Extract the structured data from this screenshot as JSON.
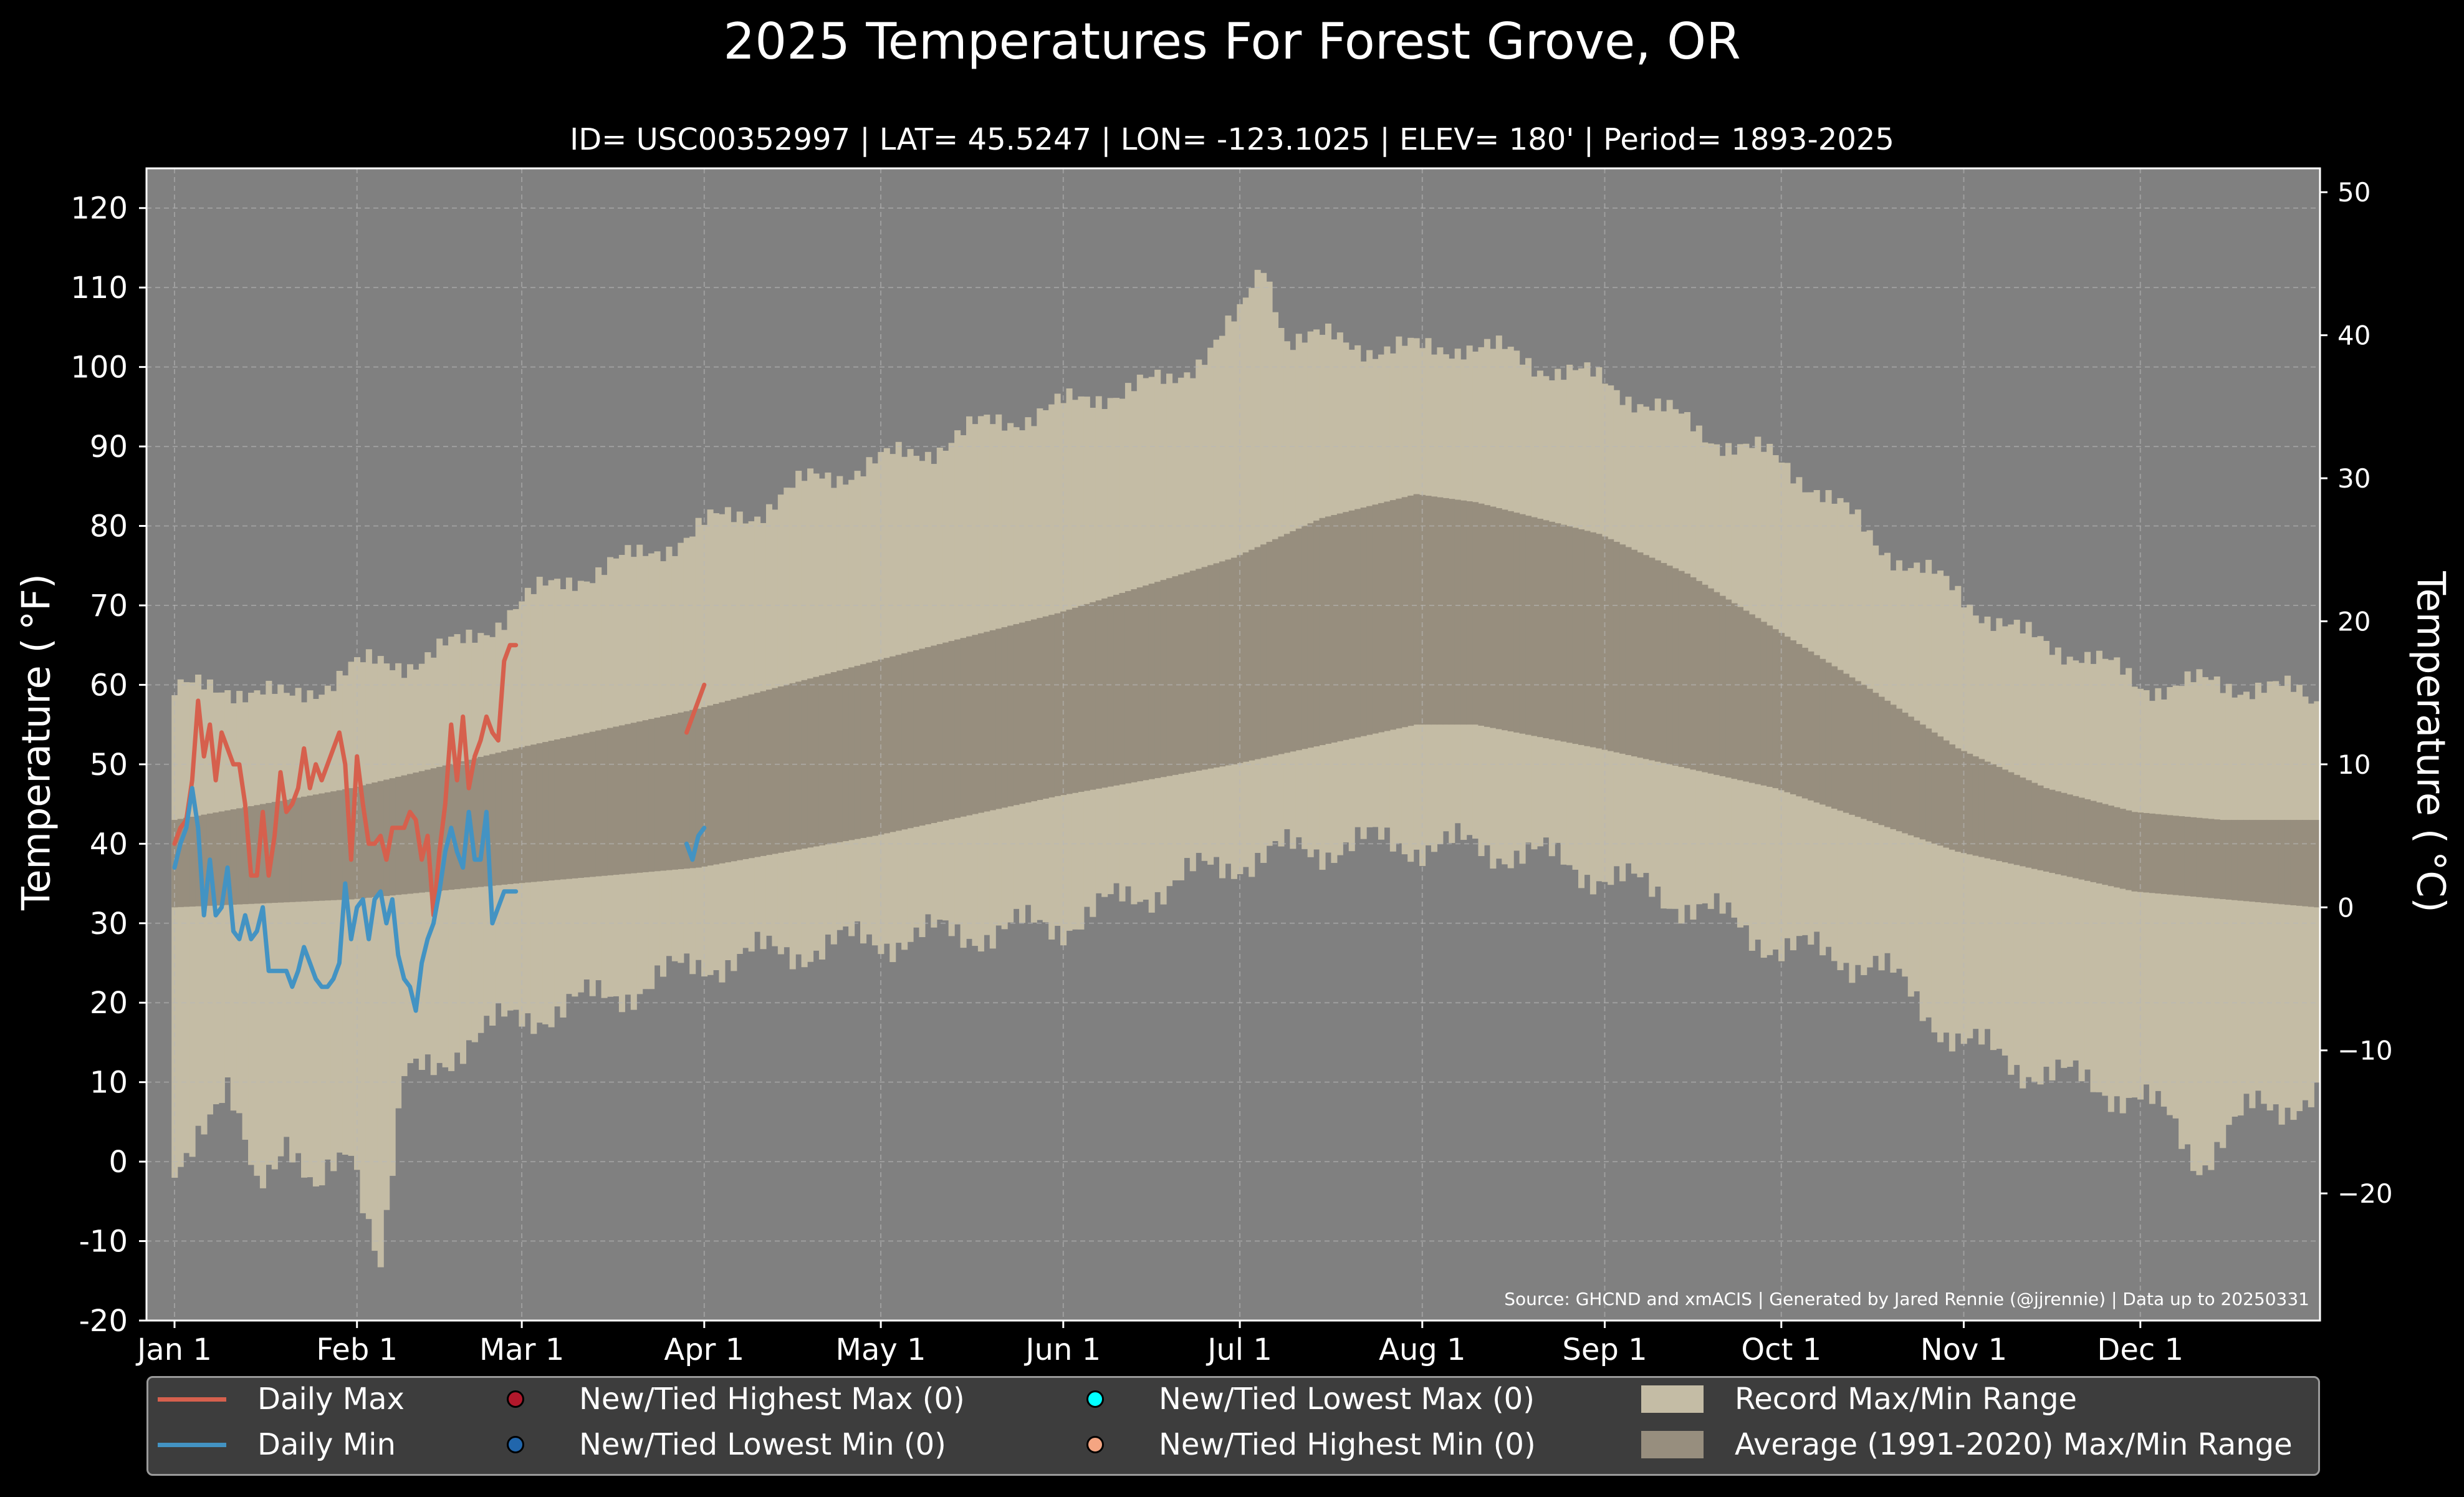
{
  "title": "2025 Temperatures For Forest Grove, OR",
  "subtitle": "ID= USC00352997 | LAT= 45.5247 | LON= -123.1025 | ELEV= 180' | Period= 1893-2025",
  "source": "Source: GHCND and xmACIS | Generated by Jared Rennie (@jjrennie) | Data up to 20250331",
  "colors": {
    "background": "#000000",
    "plot_bg": "#808080",
    "record": "#c4bca5",
    "normal": "#978e7e",
    "daily_max": "#d6604d",
    "daily_min": "#4393c3",
    "grid": "#b8b8b8"
  },
  "legend": {
    "daily_max": "Daily Max",
    "daily_min": "Daily Min",
    "new_high_max": "New/Tied Highest Max (0)",
    "new_low_min": "New/Tied Lowest Min (0)",
    "new_low_max": "New/Tied Lowest Max (0)",
    "new_high_min": "New/Tied Highest Min (0)",
    "record_range": "Record Max/Min Range",
    "normal_range": "Average (1991-2020) Max/Min Range"
  },
  "chart_data": {
    "type": "area",
    "title": "2025 Temperatures For Forest Grove, OR",
    "subtitle": "ID= USC00352997 | LAT= 45.5247 | LON= -123.1025 | ELEV= 180' | Period= 1893-2025",
    "ylabel": "Temperature ($^\\circ$F)",
    "ylabel_right": "Temperature ($^\\circ$C)",
    "ylim": [
      -20,
      125
    ],
    "yticks": [
      "120",
      "110",
      "100",
      "90",
      "80",
      "70",
      "60",
      "50",
      "40",
      "30",
      "20",
      "10",
      "0",
      "-10",
      "-20"
    ],
    "yticks_right": [
      "50",
      "40",
      "30",
      "20",
      "10",
      "0",
      "−10",
      "−20"
    ],
    "xticks": [
      "Jan 1",
      "Feb 1",
      "Mar 1",
      "Apr 1",
      "May 1",
      "Jun 1",
      "Jul 1",
      "Aug 1",
      "Sep 1",
      "Oct 1",
      "Nov 1",
      "Dec 1"
    ],
    "grid": true,
    "legend_position": "below",
    "record_max_anchors": {
      "day_of_year": [
        1,
        10,
        20,
        31,
        40,
        50,
        59,
        70,
        80,
        91,
        100,
        110,
        121,
        130,
        140,
        152,
        160,
        170,
        182,
        186,
        190,
        200,
        213,
        220,
        230,
        244,
        250,
        260,
        274,
        280,
        290,
        305,
        315,
        325,
        335,
        345,
        355,
        365
      ],
      "temp_f": [
        59,
        60,
        58,
        62,
        63,
        65,
        70,
        74,
        76,
        80,
        82,
        86,
        88,
        90,
        93,
        95,
        97,
        98,
        106,
        113,
        104,
        103,
        102,
        103,
        101,
        98,
        96,
        92,
        88,
        85,
        78,
        71,
        66,
        64,
        60,
        60,
        60,
        58
      ]
    },
    "record_min_anchors": {
      "day_of_year": [
        1,
        5,
        10,
        15,
        20,
        25,
        31,
        36,
        40,
        45,
        50,
        59,
        70,
        80,
        91,
        100,
        110,
        121,
        140,
        152,
        170,
        182,
        200,
        213,
        230,
        244,
        260,
        274,
        290,
        300,
        305,
        315,
        325,
        335,
        340,
        345,
        355,
        365
      ],
      "temp_f": [
        -1,
        5,
        8,
        -3,
        4,
        -5,
        2,
        -12,
        10,
        12,
        15,
        18,
        20,
        22,
        25,
        26,
        27,
        28,
        29,
        30,
        35,
        38,
        40,
        40,
        39,
        36,
        32,
        27,
        25,
        18,
        15,
        12,
        10,
        8,
        5,
        0,
        7,
        8
      ]
    },
    "normal_max_anchors": {
      "day_of_year": [
        1,
        31,
        59,
        90,
        120,
        151,
        181,
        196,
        212,
        222,
        243,
        258,
        273,
        288,
        304,
        319,
        334,
        349,
        365
      ],
      "temp_f": [
        43,
        47,
        52,
        57,
        63,
        69,
        76,
        81,
        84,
        83,
        79,
        74,
        67,
        60,
        52,
        47,
        44,
        43,
        43
      ]
    },
    "normal_min_anchors": {
      "day_of_year": [
        1,
        31,
        59,
        90,
        120,
        151,
        181,
        212,
        222,
        243,
        273,
        304,
        334,
        365
      ],
      "temp_f": [
        32,
        33,
        35,
        37,
        41,
        46,
        50,
        55,
        55,
        52,
        47,
        39,
        34,
        32
      ]
    },
    "series": [
      {
        "name": "Daily Max",
        "day_of_year": [
          1,
          2,
          3,
          4,
          5,
          6,
          7,
          8,
          9,
          10,
          11,
          12,
          13,
          14,
          15,
          16,
          17,
          18,
          19,
          20,
          21,
          22,
          23,
          24,
          25,
          26,
          27,
          28,
          29,
          30,
          31,
          32,
          33,
          34,
          35,
          36,
          37,
          38,
          39,
          40,
          41,
          42,
          43,
          44,
          45,
          46,
          47,
          48,
          49,
          50,
          51,
          52,
          53,
          54,
          55,
          56,
          57,
          58,
          59
        ],
        "temp_f": [
          40,
          42,
          43,
          48,
          58,
          51,
          55,
          48,
          54,
          52,
          50,
          50,
          45,
          36,
          36,
          44,
          36,
          41,
          49,
          44,
          45,
          47,
          52,
          47,
          50,
          48,
          50,
          52,
          54,
          50,
          38,
          51,
          45,
          40,
          40,
          41,
          38,
          42,
          42,
          42,
          44,
          43,
          38,
          41,
          31,
          39,
          45,
          55,
          48,
          56,
          47,
          51,
          53,
          56,
          54,
          53,
          63,
          65,
          65
        ]
      },
      {
        "name": "Daily Min",
        "day_of_year": [
          1,
          2,
          3,
          4,
          5,
          6,
          7,
          8,
          9,
          10,
          11,
          12,
          13,
          14,
          15,
          16,
          17,
          18,
          19,
          20,
          21,
          22,
          23,
          24,
          25,
          26,
          27,
          28,
          29,
          30,
          31,
          32,
          33,
          34,
          35,
          36,
          37,
          38,
          39,
          40,
          41,
          42,
          43,
          44,
          45,
          46,
          47,
          48,
          49,
          50,
          51,
          52,
          53,
          54,
          55,
          56,
          57,
          58,
          59
        ],
        "temp_f": [
          37,
          40,
          42,
          47,
          42,
          31,
          38,
          31,
          32,
          37,
          29,
          28,
          31,
          28,
          29,
          32,
          24,
          24,
          24,
          24,
          22,
          24,
          27,
          25,
          23,
          22,
          22,
          23,
          25,
          35,
          28,
          32,
          33,
          28,
          33,
          34,
          30,
          33,
          26,
          23,
          22,
          19,
          25,
          28,
          30,
          34,
          39,
          42,
          39,
          37,
          44,
          38,
          38,
          44,
          30,
          32,
          34,
          34,
          34
        ]
      },
      {
        "name": "Daily Max",
        "day_of_year": [
          88,
          89,
          90,
          91
        ],
        "temp_f": [
          54,
          56,
          58,
          60
        ]
      },
      {
        "name": "Daily Min",
        "day_of_year": [
          88,
          89,
          90,
          91
        ],
        "temp_f": [
          40,
          38,
          41,
          42
        ]
      }
    ]
  }
}
